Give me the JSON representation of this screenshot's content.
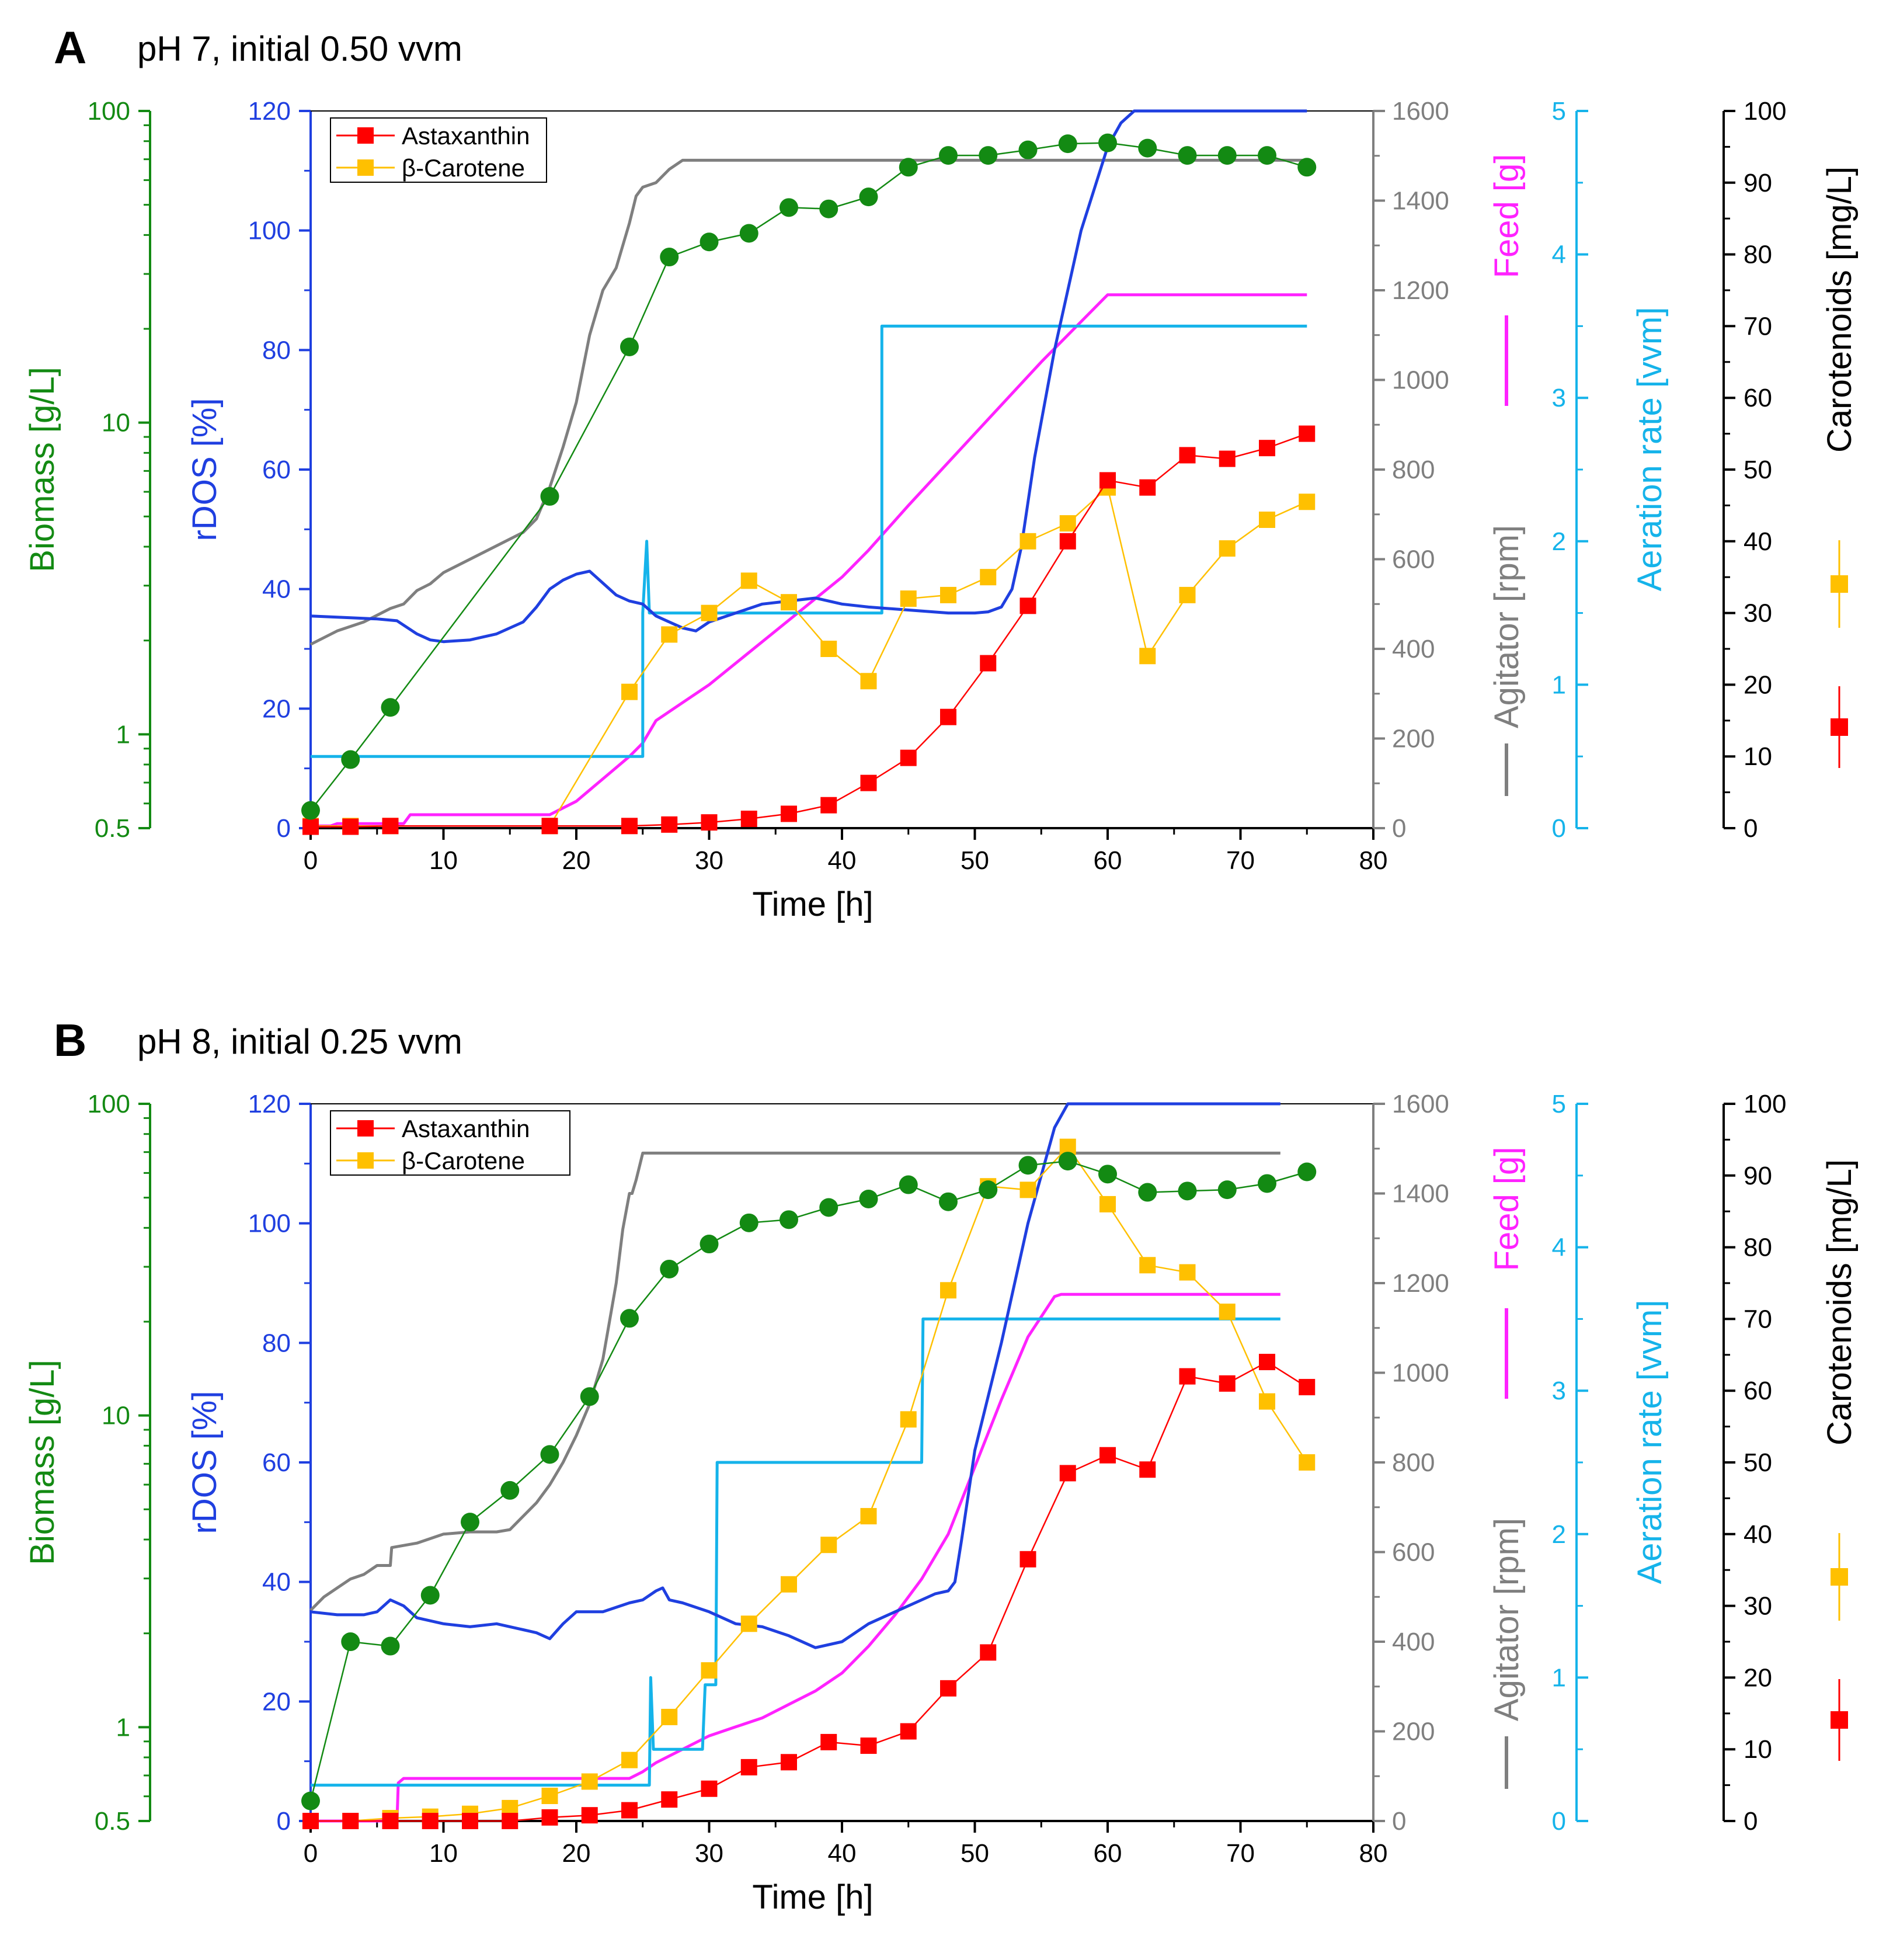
{
  "colors": {
    "biomass": "#138a13",
    "rdos": "#1f3fe0",
    "agitator": "#7f7f7f",
    "feed": "#ff22ff",
    "aeration": "#15b3ea",
    "carotenoids_axis": "#000000",
    "astaxanthin": "#ff0000",
    "beta_carotene": "#ffc000"
  },
  "chart_data": [
    {
      "type": "line",
      "panel": "A",
      "title": "pH 7, initial 0.50 vvm",
      "xlabel": "Time [h]",
      "xlim": [
        0,
        80
      ],
      "xticks": [
        0,
        10,
        20,
        30,
        40,
        50,
        60,
        70,
        80
      ],
      "axes": {
        "biomass": {
          "label": "Biomass [g/L]",
          "scale": "log",
          "lim": [
            0.5,
            100
          ],
          "ticks": [
            "0.5",
            "1",
            "10",
            "100"
          ]
        },
        "rdos": {
          "label": "rDOS [%]",
          "lim": [
            0,
            120
          ],
          "ticks": [
            "0",
            "20",
            "40",
            "60",
            "80",
            "100",
            "120"
          ]
        },
        "agitator": {
          "label": "Agitator [rpm]",
          "lim": [
            0,
            1600
          ],
          "ticks": [
            "0",
            "200",
            "400",
            "600",
            "800",
            "1000",
            "1200",
            "1400",
            "1600"
          ]
        },
        "feed": {
          "label": "Feed [g]",
          "lim": [
            0,
            1600
          ]
        },
        "aeration": {
          "label": "Aeration rate [vvm]",
          "lim": [
            0,
            5
          ],
          "ticks": [
            "0",
            "1",
            "2",
            "3",
            "4",
            "5"
          ]
        },
        "carotenoids": {
          "label": "Carotenoids [mg/L]",
          "lim": [
            0,
            100
          ],
          "ticks": [
            "0",
            "10",
            "20",
            "30",
            "40",
            "50",
            "60",
            "70",
            "80",
            "90",
            "100"
          ]
        }
      },
      "legend": [
        "Astaxanthin",
        "β-Carotene"
      ],
      "series": [
        {
          "name": "Biomass",
          "axis": "biomass",
          "style": "circles",
          "x": [
            0,
            3,
            6,
            18,
            24,
            27,
            30,
            33,
            36,
            39,
            42,
            45,
            48,
            51,
            54,
            57,
            60,
            63,
            66,
            69,
            72,
            75
          ],
          "y": [
            0.57,
            0.83,
            1.22,
            5.8,
            17.5,
            34,
            38,
            40.5,
            49,
            48.5,
            53,
            66,
            72,
            72,
            75,
            78.5,
            79,
            76,
            72,
            72,
            72,
            66
          ]
        },
        {
          "name": "Astaxanthin",
          "axis": "carotenoids",
          "style": "squares",
          "x": [
            0,
            3,
            6,
            18,
            24,
            27,
            30,
            33,
            36,
            39,
            42,
            45,
            48,
            51,
            54,
            57,
            60,
            63,
            66,
            69,
            72,
            75
          ],
          "y": [
            0.2,
            0.2,
            0.3,
            0.3,
            0.3,
            0.5,
            0.8,
            1.3,
            2.0,
            3.2,
            6.3,
            9.8,
            15.5,
            23,
            31,
            40,
            48.5,
            47.5,
            52,
            51.5,
            53,
            55
          ]
        },
        {
          "name": "β-Carotene",
          "axis": "carotenoids",
          "style": "squares",
          "x": [
            0,
            3,
            6,
            18,
            24,
            27,
            30,
            33,
            36,
            39,
            42,
            45,
            48,
            51,
            54,
            57,
            60,
            63,
            66,
            69,
            72,
            75
          ],
          "y": [
            0.3,
            0.3,
            0.3,
            0.3,
            19,
            27,
            30,
            34.5,
            31.5,
            25,
            20.5,
            32,
            32.5,
            35,
            40,
            42.5,
            47.5,
            24,
            32.5,
            39,
            43,
            45.5
          ]
        },
        {
          "name": "rDOS",
          "axis": "rdos",
          "style": "line",
          "x": [
            0,
            3,
            5,
            6.5,
            8,
            9,
            10,
            12,
            14,
            16,
            17,
            18,
            19,
            20,
            21,
            22,
            23,
            24,
            25,
            25.5,
            26,
            27,
            28,
            29,
            30,
            32,
            34,
            36,
            38,
            40,
            42,
            45,
            48,
            50,
            51,
            52,
            52.8,
            53.5,
            54.5,
            56,
            58,
            60,
            61,
            62,
            63,
            70,
            75
          ],
          "y": [
            35.5,
            35.2,
            35,
            34.7,
            32.5,
            31.5,
            31.2,
            31.5,
            32.5,
            34.5,
            37,
            40,
            41.5,
            42.5,
            43,
            41,
            39,
            38,
            37.5,
            36.5,
            35.5,
            34.5,
            33.5,
            33,
            34.5,
            36,
            37.5,
            38,
            38.5,
            37.5,
            37,
            36.5,
            36,
            36,
            36.2,
            37,
            40,
            47,
            62,
            80,
            100,
            114,
            118,
            120,
            120,
            120,
            120
          ]
        },
        {
          "name": "Agitator",
          "axis": "agitator",
          "style": "line",
          "x": [
            0,
            2,
            4,
            6,
            7,
            8,
            9,
            10,
            12,
            14,
            16,
            17,
            18,
            19,
            20,
            21,
            22,
            23,
            24,
            24.5,
            25,
            26,
            27,
            28,
            30,
            40,
            50,
            60,
            70,
            75
          ],
          "y": [
            410,
            440,
            460,
            490,
            500,
            530,
            545,
            570,
            600,
            630,
            660,
            690,
            760,
            850,
            950,
            1100,
            1200,
            1250,
            1350,
            1410,
            1430,
            1440,
            1470,
            1490,
            1490,
            1490,
            1490,
            1490,
            1490,
            1490
          ]
        },
        {
          "name": "Feed",
          "axis": "feed",
          "style": "line",
          "x": [
            0,
            1.5,
            2,
            7,
            7.5,
            18,
            20,
            22,
            24,
            25,
            26,
            28,
            30,
            35,
            40,
            42,
            45,
            50,
            55,
            58,
            60,
            61,
            65,
            70,
            75
          ],
          "y": [
            5,
            5,
            10,
            10,
            30,
            30,
            60,
            110,
            160,
            190,
            240,
            280,
            320,
            440,
            560,
            620,
            720,
            880,
            1040,
            1130,
            1190,
            1190,
            1190,
            1190,
            1190
          ]
        },
        {
          "name": "Aeration rate",
          "axis": "aeration",
          "style": "line",
          "x": [
            0,
            25,
            25.0,
            25.3,
            25.5,
            30,
            43,
            43,
            43.01,
            75
          ],
          "y": [
            0.5,
            0.5,
            1.5,
            2.0,
            1.5,
            1.5,
            1.5,
            3.5,
            3.5,
            3.5
          ]
        }
      ]
    },
    {
      "type": "line",
      "panel": "B",
      "title": "pH 8, initial 0.25 vvm",
      "xlabel": "Time [h]",
      "xlim": [
        0,
        80
      ],
      "xticks": [
        0,
        10,
        20,
        30,
        40,
        50,
        60,
        70,
        80
      ],
      "axes": {
        "biomass": {
          "label": "Biomass [g/L]",
          "scale": "log",
          "lim": [
            0.5,
            100
          ],
          "ticks": [
            "0.5",
            "1",
            "10",
            "100"
          ]
        },
        "rdos": {
          "label": "rDOS [%]",
          "lim": [
            0,
            120
          ],
          "ticks": [
            "0",
            "20",
            "40",
            "60",
            "80",
            "100",
            "120"
          ]
        },
        "agitator": {
          "label": "Agitator [rpm]",
          "lim": [
            0,
            1600
          ],
          "ticks": [
            "0",
            "200",
            "400",
            "600",
            "800",
            "1000",
            "1200",
            "1400",
            "1600"
          ]
        },
        "feed": {
          "label": "Feed [g]",
          "lim": [
            0,
            1600
          ]
        },
        "aeration": {
          "label": "Aeration rate [vvm]",
          "lim": [
            0,
            5
          ],
          "ticks": [
            "0",
            "1",
            "2",
            "3",
            "4",
            "5"
          ]
        },
        "carotenoids": {
          "label": "Carotenoids [mg/L]",
          "lim": [
            0,
            100
          ],
          "ticks": [
            "0",
            "10",
            "20",
            "30",
            "40",
            "50",
            "60",
            "70",
            "80",
            "90",
            "100"
          ]
        }
      },
      "legend": [
        "Astaxanthin",
        "β-Carotene"
      ],
      "series": [
        {
          "name": "Biomass",
          "axis": "biomass",
          "style": "circles",
          "x": [
            0,
            3,
            6,
            9,
            12,
            15,
            18,
            21,
            24,
            27,
            30,
            33,
            36,
            39,
            42,
            45,
            48,
            51,
            54,
            57,
            60,
            63,
            66,
            69,
            72,
            75
          ],
          "y": [
            0.58,
            1.88,
            1.82,
            2.65,
            4.55,
            5.75,
            7.5,
            11.5,
            20.5,
            29.5,
            35.5,
            41.5,
            42.5,
            46.5,
            49.5,
            55,
            48.5,
            53,
            63.5,
            65.5,
            59.5,
            52,
            52.5,
            53,
            55.5,
            60.5
          ]
        },
        {
          "name": "Astaxanthin",
          "axis": "carotenoids",
          "style": "squares",
          "x": [
            0,
            3,
            6,
            9,
            12,
            15,
            18,
            21,
            24,
            27,
            30,
            33,
            36,
            39,
            42,
            45,
            48,
            51,
            54,
            57,
            60,
            63,
            66,
            69,
            72,
            75
          ],
          "y": [
            0,
            0,
            0,
            0,
            0,
            0,
            0.5,
            0.8,
            1.5,
            3.0,
            4.5,
            7.5,
            8.2,
            11,
            10.5,
            12.5,
            18.5,
            23.5,
            36.5,
            48.5,
            51,
            49,
            62,
            61,
            64,
            60.5
          ]
        },
        {
          "name": "β-Carotene",
          "axis": "carotenoids",
          "style": "squares",
          "x": [
            0,
            3,
            6,
            9,
            12,
            15,
            18,
            21,
            24,
            27,
            30,
            33,
            36,
            39,
            42,
            45,
            48,
            51,
            54,
            57,
            60,
            63,
            66,
            69,
            72,
            75
          ],
          "y": [
            0,
            0,
            0.4,
            0.6,
            1.0,
            1.8,
            3.5,
            5.5,
            8.5,
            14.5,
            21,
            27.5,
            33,
            38.5,
            42.5,
            56,
            74,
            88.5,
            88,
            94,
            86,
            77.5,
            76.5,
            71,
            58.5,
            50
          ]
        },
        {
          "name": "rDOS",
          "axis": "rdos",
          "style": "line",
          "x": [
            0,
            2,
            4,
            5,
            6,
            7,
            8,
            10,
            12,
            14,
            16,
            17,
            18,
            19,
            20,
            22,
            24,
            25,
            26,
            26.5,
            27,
            28,
            30,
            32,
            34,
            36,
            38,
            40,
            42,
            44,
            46,
            47,
            48,
            48.5,
            49,
            50,
            52,
            54,
            56,
            57,
            60,
            70,
            73
          ],
          "y": [
            35,
            34.5,
            34.5,
            35,
            37,
            36,
            34,
            33,
            32.5,
            33,
            32,
            31.5,
            30.5,
            33,
            35,
            35,
            36.5,
            37,
            38.5,
            39,
            37,
            36.5,
            35,
            33,
            32.5,
            31,
            29,
            30,
            33,
            35,
            37,
            38,
            38.5,
            40,
            47,
            62,
            80,
            100,
            116,
            120,
            120,
            120,
            120
          ]
        },
        {
          "name": "Agitator",
          "axis": "agitator",
          "style": "line",
          "x": [
            0,
            1,
            2,
            3,
            4,
            5,
            6,
            6.1,
            8,
            10,
            12,
            14,
            15,
            16,
            17,
            18,
            19,
            20,
            21,
            22,
            23,
            23.5,
            24,
            24.2,
            24.5,
            25,
            26,
            27,
            30,
            40,
            50,
            60,
            70,
            73
          ],
          "y": [
            470,
            500,
            520,
            540,
            550,
            570,
            570,
            610,
            620,
            640,
            645,
            645,
            650,
            680,
            710,
            750,
            800,
            860,
            930,
            1030,
            1200,
            1320,
            1400,
            1400,
            1430,
            1490,
            1490,
            1490,
            1490,
            1490,
            1490,
            1490,
            1490,
            1490
          ]
        },
        {
          "name": "Feed",
          "axis": "feed",
          "style": "line",
          "x": [
            0,
            6.5,
            6.6,
            7,
            24,
            25,
            26,
            28,
            30,
            32,
            34,
            36,
            38,
            40,
            42,
            44,
            46,
            48,
            50,
            52,
            54,
            56,
            56.5,
            60,
            65,
            70,
            73
          ],
          "y": [
            0,
            0,
            85,
            95,
            95,
            110,
            130,
            160,
            190,
            210,
            230,
            260,
            290,
            330,
            390,
            460,
            540,
            640,
            790,
            940,
            1080,
            1170,
            1175,
            1175,
            1175,
            1175,
            1175
          ]
        },
        {
          "name": "Aeration rate",
          "axis": "aeration",
          "style": "line",
          "x": [
            0,
            25.5,
            25.6,
            25.8,
            26,
            29.5,
            29.7,
            30,
            30.5,
            30.6,
            46,
            46.1,
            73
          ],
          "y": [
            0.25,
            0.25,
            1.0,
            0.5,
            0.5,
            0.5,
            0.95,
            0.95,
            0.95,
            2.5,
            2.5,
            3.5,
            3.5
          ]
        }
      ]
    }
  ]
}
